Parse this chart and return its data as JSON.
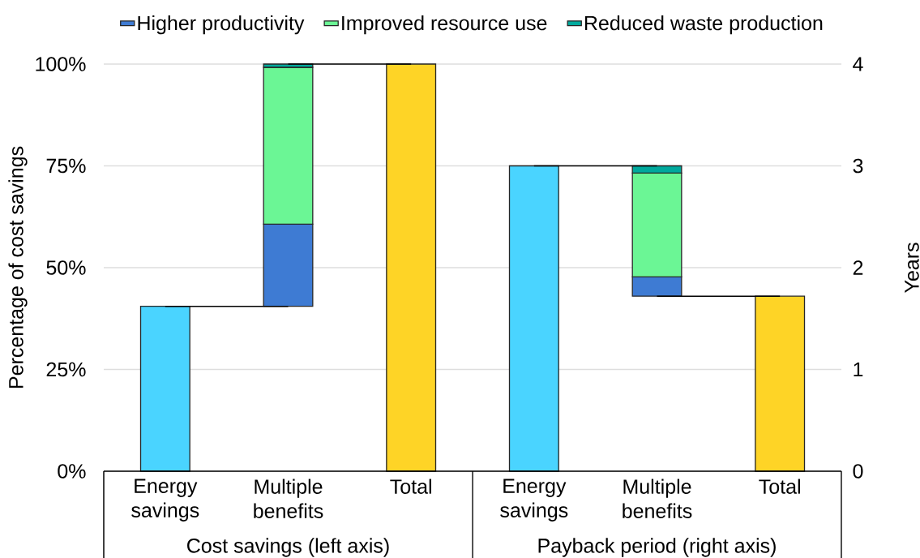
{
  "chart_data": [
    {
      "type": "bar",
      "categories": [
        "Energy savings",
        "Multiple benefits",
        "Total"
      ],
      "xlabel": "Cost savings (left axis)",
      "ylabel": "Percentage of cost savings",
      "ylim": [
        0,
        100
      ],
      "yticks": [
        {
          "value": 0,
          "label": "0%"
        },
        {
          "value": 25,
          "label": "25%"
        },
        {
          "value": 50,
          "label": "50%"
        },
        {
          "value": 75,
          "label": "75%"
        },
        {
          "value": 100,
          "label": "100%"
        }
      ],
      "grid": "y",
      "legend": "top",
      "series": [
        {
          "color": "#4ad4ff",
          "values": [
            40.5,
            null,
            null
          ]
        },
        {
          "name": "Higher productivity",
          "color": "#3e7bd3",
          "values": [
            null,
            20.2,
            null
          ],
          "base": [
            null,
            40.5,
            null
          ]
        },
        {
          "name": "Improved resource use",
          "color": "#6bf695",
          "values": [
            null,
            38.5,
            null
          ],
          "base": [
            null,
            60.7,
            null
          ]
        },
        {
          "name": "Reduced waste production",
          "color": "#00a99d",
          "values": [
            null,
            0.8,
            null
          ],
          "base": [
            null,
            99.2,
            null
          ]
        },
        {
          "color": "#fed426",
          "values": [
            null,
            null,
            100
          ]
        },
        {
          "type": "line",
          "color": "#000000",
          "values": [
            40.5,
            40.5,
            null
          ]
        },
        {
          "type": "line",
          "color": "#000000",
          "values": [
            null,
            100,
            100
          ]
        }
      ]
    },
    {
      "type": "bar",
      "categories": [
        "Energy savings",
        "Multiple benefits",
        "Total"
      ],
      "xlabel": "Payback period (right axis)",
      "y2label": "Years",
      "y2lim": [
        0,
        4
      ],
      "y2ticks": [
        0,
        1,
        2,
        3,
        4
      ],
      "grid": "y",
      "series": [
        {
          "color": "#4ad4ff",
          "axis": "y2",
          "values": [
            3.0,
            null,
            null
          ]
        },
        {
          "color": "#3e7bd3",
          "axis": "y2",
          "values": [
            null,
            0.19,
            null
          ],
          "base": [
            null,
            1.72,
            null
          ]
        },
        {
          "color": "#6bf695",
          "axis": "y2",
          "values": [
            null,
            1.02,
            null
          ],
          "base": [
            null,
            1.91,
            null
          ]
        },
        {
          "color": "#00a99d",
          "axis": "y2",
          "values": [
            null,
            0.07,
            null
          ],
          "base": [
            null,
            2.93,
            null
          ]
        },
        {
          "color": "#fed426",
          "axis": "y2",
          "values": [
            null,
            null,
            1.72
          ]
        },
        {
          "type": "line",
          "color": "#000000",
          "axis": "y2",
          "values": [
            3.0,
            3.0,
            null
          ]
        },
        {
          "type": "line",
          "color": "#000000",
          "axis": "y2",
          "values": [
            null,
            1.72,
            1.72
          ]
        }
      ]
    }
  ]
}
